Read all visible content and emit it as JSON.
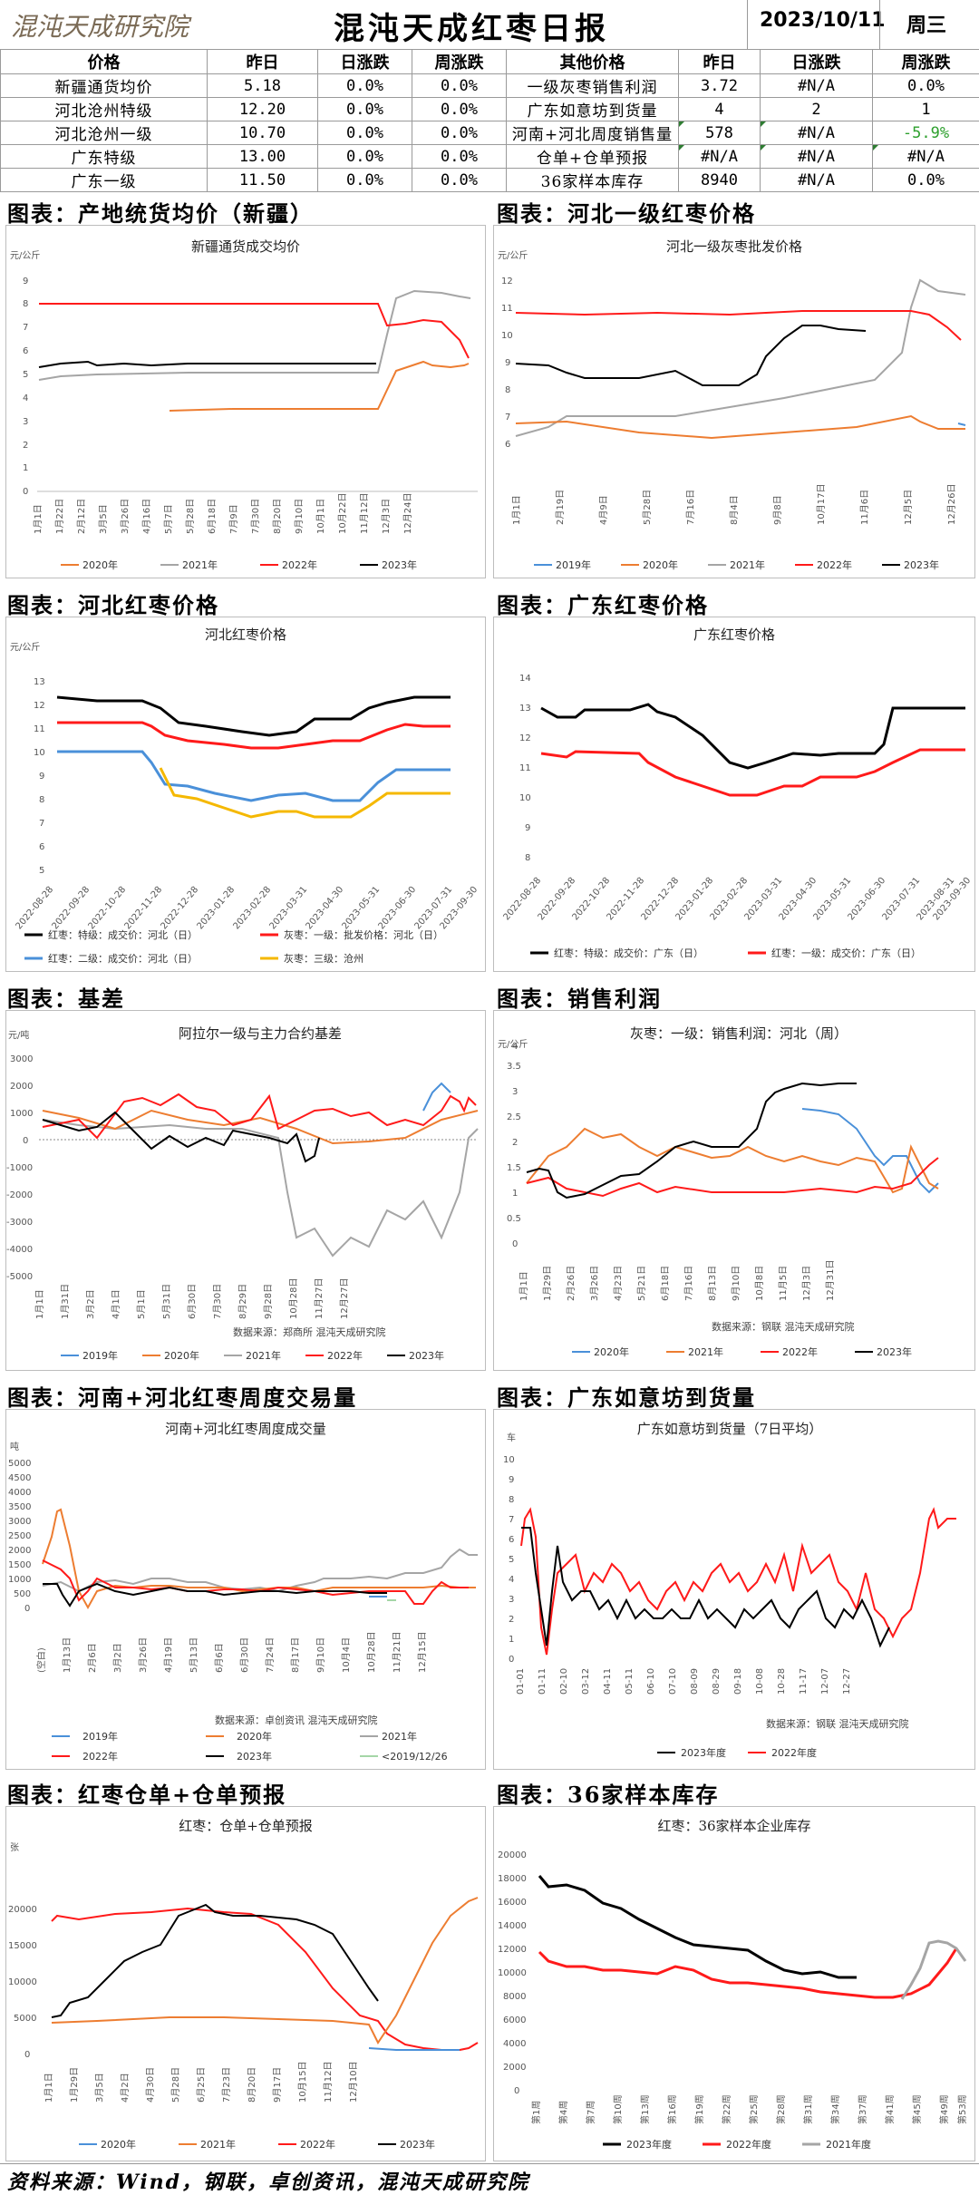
{
  "header": {
    "logo_text": "混沌天成研究院",
    "title": "混沌天成红枣日报",
    "date": "2023/10/11",
    "weekday": "周三"
  },
  "table": {
    "left_headers": [
      "价格",
      "昨日",
      "日涨跌",
      "周涨跌"
    ],
    "right_headers": [
      "其他价格",
      "昨日",
      "日涨跌",
      "周涨跌"
    ],
    "left_rows": [
      {
        "name": "新疆通货均价",
        "prev": "5.18",
        "day": "0.0%",
        "week": "0.0%"
      },
      {
        "name": "河北沧州特级",
        "prev": "12.20",
        "day": "0.0%",
        "week": "0.0%"
      },
      {
        "name": "河北沧州一级",
        "prev": "10.70",
        "day": "0.0%",
        "week": "0.0%"
      },
      {
        "name": "广东特级",
        "prev": "13.00",
        "day": "0.0%",
        "week": "0.0%"
      },
      {
        "name": "广东一级",
        "prev": "11.50",
        "day": "0.0%",
        "week": "0.0%"
      }
    ],
    "right_rows": [
      {
        "name": "一级灰枣销售利润",
        "prev": "3.72",
        "day": "#N/A",
        "week": "0.0%"
      },
      {
        "name": "广东如意坊到货量",
        "prev": "4",
        "day": "2",
        "week": "1"
      },
      {
        "name": "河南+河北周度销售量",
        "prev": "578",
        "day": "#N/A",
        "week": "-5.9%"
      },
      {
        "name": "仓单+仓单预报",
        "prev": "#N/A",
        "day": "#N/A",
        "week": "#N/A"
      },
      {
        "name": "36家样本库存",
        "prev": "8940",
        "day": "#N/A",
        "week": "0.0%"
      }
    ]
  },
  "sections": {
    "s1": "图表：产地统货均价（新疆）",
    "s2": "图表：河北一级红枣价格",
    "s3": "图表：河北红枣价格",
    "s4": "图表：广东红枣价格",
    "s5": "图表：基差",
    "s6": "图表：销售利润",
    "s7": "图表：河南+河北红枣周度交易量",
    "s8": "图表：广东如意坊到货量",
    "s9": "图表：红枣仓单+仓单预报",
    "s10": "图表：36家样本库存"
  },
  "charts": {
    "c1": {
      "title": "新疆通货成交均价",
      "unit": "元/公斤",
      "legend": [
        "2020年",
        "2021年",
        "2022年",
        "2023年"
      ]
    },
    "c2": {
      "title": "河北一级灰枣批发价格",
      "unit": "元/公斤",
      "legend": [
        "2019年",
        "2020年",
        "2021年",
        "2022年",
        "2023年"
      ]
    },
    "c3": {
      "title": "河北红枣价格",
      "unit": "元/公斤",
      "legend": [
        "红枣：特级：成交价：河北（日）",
        "灰枣：一级：批发价格：河北（日）",
        "红枣：二级：成交价：河北（日）",
        "灰枣：三级：沧州"
      ]
    },
    "c4": {
      "title": "广东红枣价格",
      "legend": [
        "红枣：特级：成交价：广东（日）",
        "红枣：一级：成交价：广东（日）"
      ]
    },
    "c5": {
      "title": "阿拉尔一级与主力合约基差",
      "unit": "元/吨",
      "source": "数据来源：郑商所 混沌天成研究院",
      "legend": [
        "2019年",
        "2020年",
        "2021年",
        "2022年",
        "2023年"
      ]
    },
    "c6": {
      "title": "灰枣：一级：销售利润：河北（周）",
      "unit": "元/公斤",
      "source": "数据来源：钢联 混沌天成研究院",
      "legend": [
        "2020年",
        "2021年",
        "2022年",
        "2023年"
      ]
    },
    "c7": {
      "title": "河南+河北红枣周度成交量",
      "unit": "吨",
      "source": "数据来源：卓创资讯 混沌天成研究院",
      "legend": [
        "2019年",
        "2020年",
        "2021年",
        "2022年",
        "2023年",
        "<2019/12/26"
      ]
    },
    "c8": {
      "title": "广东如意坊到货量（7日平均）",
      "unit": "车",
      "source": "数据来源：钢联 混沌天成研究院",
      "legend": [
        "2023年度",
        "2022年度"
      ]
    },
    "c9": {
      "title": "红枣：仓单+仓单预报",
      "unit": "张",
      "legend": [
        "2020年",
        "2021年",
        "2022年",
        "2023年"
      ]
    },
    "c10": {
      "title": "红枣：36家样本企业库存",
      "legend": [
        "2023年度",
        "2022年度",
        "2021年度"
      ]
    }
  },
  "colors": {
    "blue": "#4a90d9",
    "orange": "#ed7d31",
    "gray": "#a5a5a5",
    "red": "#ff1a1a",
    "black": "#000000",
    "gold": "#f5b800",
    "green": "#2ea02e"
  },
  "footer": "资料来源：Wind，钢联，卓创资讯，混沌天成研究院"
}
